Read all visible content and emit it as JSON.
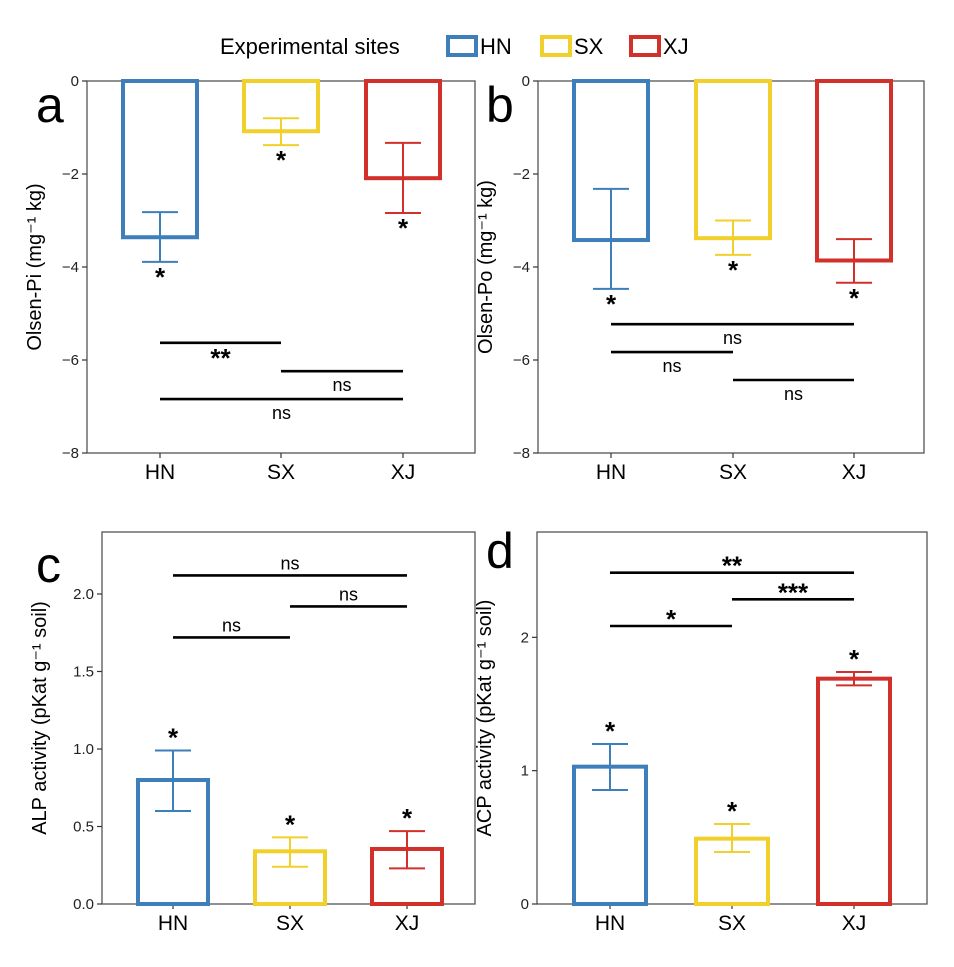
{
  "legend": {
    "title": "Experimental sites",
    "items": [
      {
        "label": "HN",
        "color": "#3d7ebb"
      },
      {
        "label": "SX",
        "color": "#f1d02c"
      },
      {
        "label": "XJ",
        "color": "#d2302b"
      }
    ]
  },
  "chart_data": [
    {
      "type": "bar",
      "panel": "a",
      "ylabel": "Olsen-Pi (mg⁻¹ kg)",
      "categories": [
        "HN",
        "SX",
        "XJ"
      ],
      "values": [
        -3.36,
        -1.08,
        -2.09
      ],
      "error_low": [
        -3.89,
        -1.38,
        -2.84
      ],
      "error_high": [
        -2.82,
        -0.8,
        -1.33
      ],
      "bar_labels": [
        "*",
        "*",
        "*"
      ],
      "ylim": [
        -8,
        0
      ],
      "yticks": [
        0,
        -2,
        -4,
        -6,
        -8
      ],
      "ytick_labels": [
        "0",
        "−2",
        "−4",
        "−6",
        "−8"
      ],
      "comparisons": [
        {
          "from": "HN",
          "to": "SX",
          "y": -5.63,
          "label": "**"
        },
        {
          "from": "SX",
          "to": "XJ",
          "y": -6.24,
          "label": "ns"
        },
        {
          "from": "HN",
          "to": "XJ",
          "y": -6.84,
          "label": "ns"
        }
      ]
    },
    {
      "type": "bar",
      "panel": "b",
      "ylabel": "Olsen-Po (mg⁻¹ kg)",
      "categories": [
        "HN",
        "SX",
        "XJ"
      ],
      "values": [
        -3.42,
        -3.38,
        -3.86
      ],
      "error_low": [
        -4.47,
        -3.74,
        -4.34
      ],
      "error_high": [
        -2.32,
        -3.0,
        -3.4
      ],
      "bar_labels": [
        "*",
        "*",
        "*"
      ],
      "ylim": [
        -8,
        0
      ],
      "yticks": [
        0,
        -2,
        -4,
        -6,
        -8
      ],
      "ytick_labels": [
        "0",
        "−2",
        "−4",
        "−6",
        "−8"
      ],
      "comparisons": [
        {
          "from": "HN",
          "to": "XJ",
          "y": -5.23,
          "label": "ns"
        },
        {
          "from": "HN",
          "to": "SX",
          "y": -5.83,
          "label": "ns"
        },
        {
          "from": "SX",
          "to": "XJ",
          "y": -6.43,
          "label": "ns"
        }
      ]
    },
    {
      "type": "bar",
      "panel": "c",
      "ylabel": "ALP activity (pKat g⁻¹ soil)",
      "categories": [
        "HN",
        "SX",
        "XJ"
      ],
      "values": [
        0.8,
        0.34,
        0.355
      ],
      "error_low": [
        0.6,
        0.24,
        0.23
      ],
      "error_high": [
        0.99,
        0.43,
        0.47
      ],
      "bar_labels": [
        "*",
        "*",
        "*"
      ],
      "ylim": [
        0,
        2.4
      ],
      "yticks": [
        0,
        0.5,
        1.0,
        1.5,
        2.0
      ],
      "ytick_labels": [
        "0.0",
        "0.5",
        "1.0",
        "1.5",
        "2.0"
      ],
      "comparisons": [
        {
          "from": "HN",
          "to": "XJ",
          "y": 2.12,
          "label": "ns"
        },
        {
          "from": "SX",
          "to": "XJ",
          "y": 1.92,
          "label": "ns"
        },
        {
          "from": "HN",
          "to": "SX",
          "y": 1.72,
          "label": "ns"
        }
      ]
    },
    {
      "type": "bar",
      "panel": "d",
      "ylabel": "ACP activity (pKat g⁻¹ soil)",
      "categories": [
        "HN",
        "SX",
        "XJ"
      ],
      "values": [
        1.03,
        0.49,
        1.69
      ],
      "error_low": [
        0.855,
        0.39,
        1.64
      ],
      "error_high": [
        1.2,
        0.6,
        1.74
      ],
      "bar_labels": [
        "*",
        "*",
        "*"
      ],
      "ylim": [
        0,
        2.79
      ],
      "yticks": [
        0,
        1,
        2
      ],
      "ytick_labels": [
        "0",
        "1",
        "2"
      ],
      "comparisons": [
        {
          "from": "HN",
          "to": "XJ",
          "y": 2.485,
          "label": "**"
        },
        {
          "from": "SX",
          "to": "XJ",
          "y": 2.285,
          "label": "***"
        },
        {
          "from": "HN",
          "to": "SX",
          "y": 2.085,
          "label": "*"
        }
      ]
    }
  ]
}
